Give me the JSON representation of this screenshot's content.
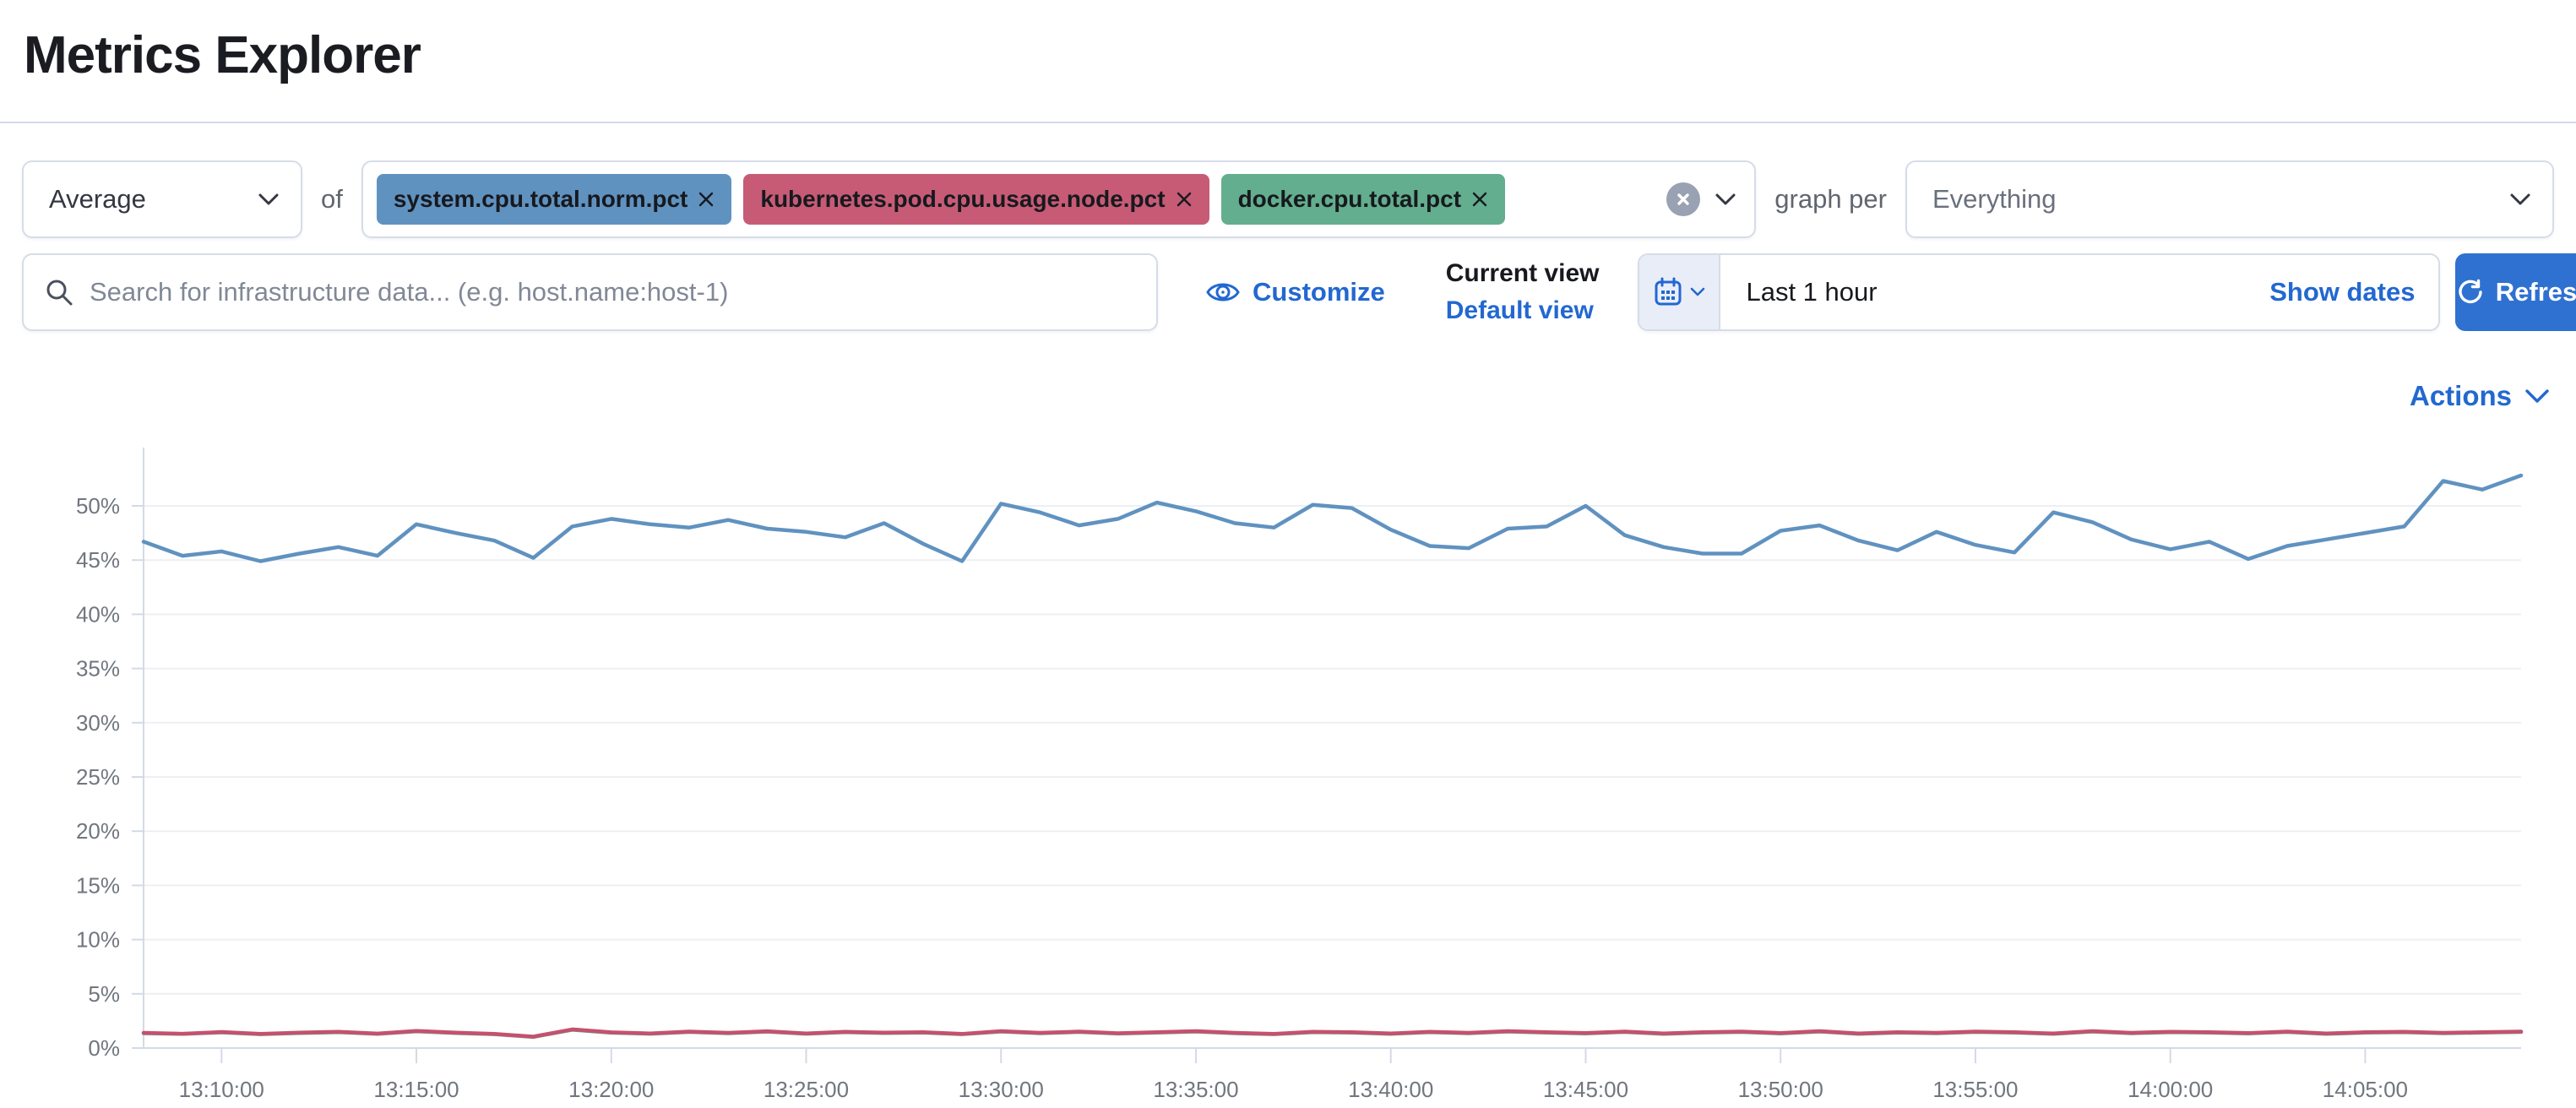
{
  "page": {
    "title": "Metrics Explorer"
  },
  "toolbar": {
    "aggregation": {
      "value": "Average"
    },
    "of_label": "of",
    "metrics": [
      {
        "label": "system.cpu.total.norm.pct",
        "color": "#6092C0"
      },
      {
        "label": "kubernetes.pod.cpu.usage.node.pct",
        "color": "#C75B76"
      },
      {
        "label": "docker.cpu.total.pct",
        "color": "#62AE8E"
      }
    ],
    "graph_per_label": "graph per",
    "group_by": {
      "value": "Everything"
    }
  },
  "search": {
    "placeholder": "Search for infrastructure data... (e.g. host.name:host-1)"
  },
  "view_controls": {
    "customize_label": "Customize",
    "current_view_label": "Current view",
    "default_view_label": "Default view"
  },
  "time_picker": {
    "value": "Last 1 hour",
    "show_dates_label": "Show dates",
    "refresh_label": "Refresh"
  },
  "chart": {
    "actions_label": "Actions"
  },
  "chart_data": {
    "type": "line",
    "title": "",
    "xlabel": "",
    "ylabel": "",
    "grid": true,
    "legend": false,
    "ylim": [
      0,
      54.8
    ],
    "yticks": [
      0,
      5,
      10,
      15,
      20,
      25,
      30,
      35,
      40,
      45,
      50
    ],
    "ytick_suffix": "%",
    "x_tick_labels": [
      "13:10:00",
      "13:15:00",
      "13:20:00",
      "13:25:00",
      "13:30:00",
      "13:35:00",
      "13:40:00",
      "13:45:00",
      "13:50:00",
      "13:55:00",
      "14:00:00",
      "14:05:00"
    ],
    "x_tick_indices": [
      2,
      7,
      12,
      17,
      22,
      27,
      32,
      37,
      42,
      47,
      52,
      57
    ],
    "series": [
      {
        "name": "system.cpu.total.norm.pct",
        "color": "#6092C0",
        "values": [
          46.7,
          45.4,
          45.8,
          44.9,
          45.6,
          46.2,
          45.4,
          48.3,
          47.5,
          46.8,
          45.2,
          48.1,
          48.8,
          48.3,
          48.0,
          48.7,
          47.9,
          47.6,
          47.1,
          48.4,
          46.5,
          44.9,
          50.2,
          49.4,
          48.2,
          48.8,
          50.3,
          49.5,
          48.4,
          48.0,
          50.1,
          49.8,
          47.8,
          46.3,
          46.1,
          47.9,
          48.1,
          50.0,
          47.3,
          46.2,
          45.6,
          45.6,
          47.7,
          48.2,
          46.8,
          45.9,
          47.6,
          46.4,
          45.7,
          49.4,
          48.5,
          46.9,
          46.0,
          46.7,
          45.1,
          46.3,
          46.9,
          47.5,
          48.1,
          52.3,
          51.5,
          52.8
        ]
      },
      {
        "name": "docker.cpu.total.pct",
        "color": "#62AE8E",
        "values": [
          1.36,
          1.3,
          1.44,
          1.28,
          1.38,
          1.46,
          1.3,
          1.54,
          1.38,
          1.28,
          1.02,
          1.68,
          1.41,
          1.32,
          1.48,
          1.36,
          1.51,
          1.32,
          1.46,
          1.38,
          1.42,
          1.28,
          1.52,
          1.36,
          1.48,
          1.33,
          1.42,
          1.52,
          1.36,
          1.28,
          1.46,
          1.42,
          1.31,
          1.46,
          1.36,
          1.52,
          1.42,
          1.35,
          1.48,
          1.31,
          1.42,
          1.48,
          1.35,
          1.52,
          1.31,
          1.42,
          1.36,
          1.48,
          1.42,
          1.31,
          1.52,
          1.36,
          1.46,
          1.42,
          1.35,
          1.48,
          1.31,
          1.42,
          1.46,
          1.36,
          1.42,
          1.48
        ]
      },
      {
        "name": "kubernetes.pod.cpu.usage.node.pct",
        "color": "#C5516F",
        "values": [
          1.4,
          1.32,
          1.48,
          1.3,
          1.42,
          1.5,
          1.33,
          1.58,
          1.42,
          1.3,
          1.05,
          1.72,
          1.45,
          1.35,
          1.52,
          1.4,
          1.55,
          1.35,
          1.5,
          1.42,
          1.46,
          1.3,
          1.56,
          1.4,
          1.52,
          1.36,
          1.46,
          1.56,
          1.4,
          1.3,
          1.5,
          1.46,
          1.34,
          1.5,
          1.4,
          1.56,
          1.46,
          1.38,
          1.52,
          1.34,
          1.46,
          1.52,
          1.38,
          1.56,
          1.34,
          1.46,
          1.4,
          1.52,
          1.46,
          1.34,
          1.56,
          1.4,
          1.5,
          1.46,
          1.38,
          1.52,
          1.34,
          1.46,
          1.5,
          1.4,
          1.46,
          1.52
        ]
      }
    ]
  }
}
